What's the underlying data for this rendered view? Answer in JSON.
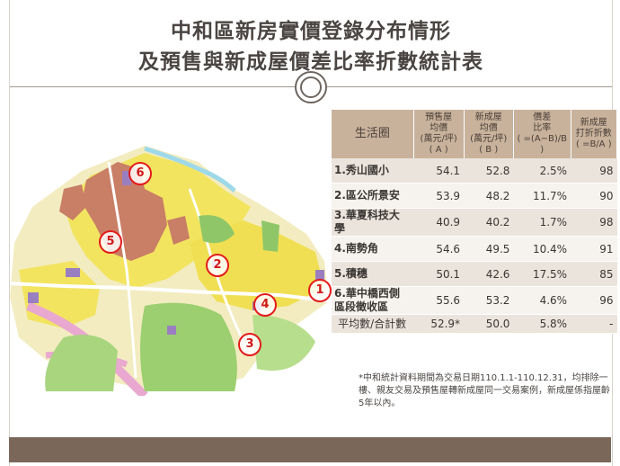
{
  "title": {
    "line1": "中和區新房實價登錄分布情形",
    "line2": "及預售與新成屋價差比率折數統計表"
  },
  "map": {
    "badges": [
      "6",
      "5",
      "2",
      "1",
      "4",
      "3"
    ]
  },
  "table": {
    "headers": {
      "area": "生活圈",
      "presale": [
        "預售屋",
        "均價",
        "(萬元/坪)",
        "( A )"
      ],
      "new": [
        "新成屋",
        "均價",
        "(萬元/坪)",
        "( B )"
      ],
      "diff": [
        "價差",
        "比率",
        "( =(A−B)/B )"
      ],
      "discount": [
        "新成屋",
        "打折折數",
        "( =B/A )"
      ]
    },
    "rows": [
      {
        "name": "1.秀山國小",
        "a": "54.1",
        "b": "52.8",
        "ratio": "2.5%",
        "discount": "98"
      },
      {
        "name": "2.區公所景安",
        "a": "53.9",
        "b": "48.2",
        "ratio": "11.7%",
        "discount": "90"
      },
      {
        "name": "3.華夏科技大學",
        "a": "40.9",
        "b": "40.2",
        "ratio": "1.7%",
        "discount": "98"
      },
      {
        "name": "4.南勢角",
        "a": "54.6",
        "b": "49.5",
        "ratio": "10.4%",
        "discount": "91"
      },
      {
        "name": "5.積穗",
        "a": "50.1",
        "b": "42.6",
        "ratio": "17.5%",
        "discount": "85"
      },
      {
        "name": "6.華中橋西側區段徵收區",
        "a": "55.6",
        "b": "53.2",
        "ratio": "4.6%",
        "discount": "96"
      }
    ],
    "total": {
      "name": "平均數/合計數",
      "a": "52.9*",
      "b": "50.0",
      "ratio": "5.8%",
      "discount": "-"
    }
  },
  "footnote": "*中和統計資料期間為交易日期110.1.1-110.12.31，均排除一樓、親友交易及預售屋轉新成屋同一交易案例，新成屋係指屋齡5年以內。",
  "colors": {
    "header_bg": "#c8b29c",
    "row_odd": "#ebe4dc",
    "row_even": "#f6f2ee",
    "badge": "#e31b1b",
    "bottom_bar": "#7a675a"
  }
}
